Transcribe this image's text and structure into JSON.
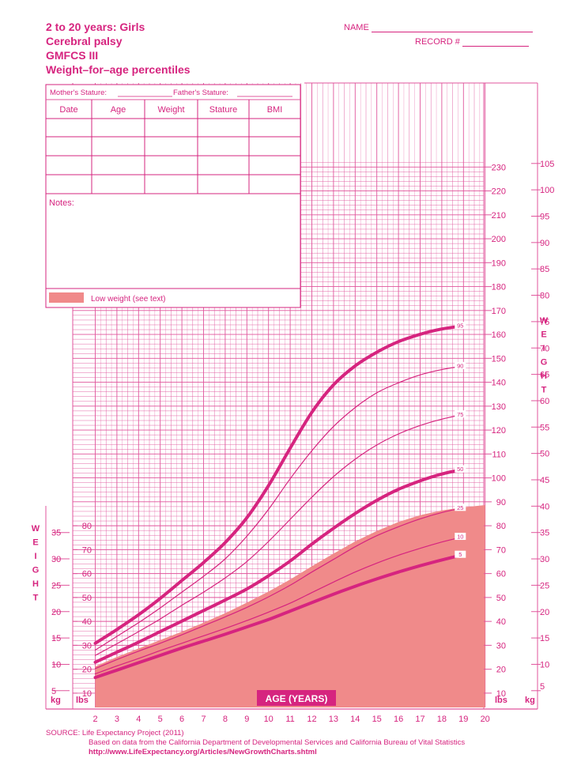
{
  "header": {
    "title_lines": [
      "2 to 20 years: Girls",
      "Cerebral palsy",
      "GMFCS III",
      "Weight–for–age percentiles"
    ],
    "name_label": "NAME",
    "record_label": "RECORD #"
  },
  "record_table": {
    "mother_label": "Mother's Stature:",
    "father_label": "Father's Stature:",
    "columns": [
      "Date",
      "Age",
      "Weight",
      "Stature",
      "BMI"
    ],
    "notes_label": "Notes:",
    "legend_label": "Low weight (see text)"
  },
  "side_labels": {
    "left_word": "WEIGHT",
    "right_word": "WEIGHT",
    "kg": "kg",
    "lbs": "lbs"
  },
  "source": {
    "line1": "SOURCE:  Life Expectancy Project (2011)",
    "line2": "Based on data from the California Department of Developmental Services and California Bureau of Vital Statistics",
    "line3": "http://www.LifeExpectancy.org/Articles/NewGrowthCharts.shtml"
  },
  "colors": {
    "accent": "#d6247f",
    "grid": "#e0559c",
    "shade": "#f08a8a"
  },
  "chart_data": {
    "type": "line",
    "title": "Weight–for–age percentiles",
    "xlabel": "AGE (YEARS)",
    "ylabel": "WEIGHT",
    "x": [
      2,
      3,
      4,
      5,
      6,
      7,
      8,
      9,
      10,
      11,
      12,
      13,
      14,
      15,
      16,
      17,
      18,
      19,
      20
    ],
    "xlim": [
      2,
      20
    ],
    "ylim_kg": [
      3,
      107
    ],
    "grid": true,
    "series": [
      {
        "name": "5",
        "values": [
          7.5,
          8.9,
          10.3,
          11.7,
          13.1,
          14.4,
          15.7,
          17.1,
          18.5,
          20.1,
          21.7,
          23.3,
          24.8,
          26.2,
          27.5,
          28.7,
          29.8,
          30.8,
          31.6
        ]
      },
      {
        "name": "10",
        "values": [
          8.2,
          9.7,
          11.1,
          12.6,
          14.0,
          15.4,
          16.8,
          18.3,
          19.9,
          21.6,
          23.6,
          25.6,
          27.5,
          29.2,
          30.7,
          32.0,
          33.2,
          34.2,
          34.9
        ]
      },
      {
        "name": "25",
        "values": [
          9.2,
          10.9,
          12.5,
          14.0,
          15.6,
          17.3,
          19.0,
          20.8,
          22.8,
          25.0,
          27.5,
          29.9,
          32.3,
          34.4,
          36.1,
          37.6,
          38.8,
          39.7,
          40.3
        ]
      },
      {
        "name": "50",
        "values": [
          10.4,
          12.3,
          14.2,
          16.2,
          18.2,
          20.2,
          22.2,
          24.3,
          26.8,
          29.6,
          32.8,
          35.8,
          38.6,
          41.1,
          43.2,
          44.8,
          46.1,
          47.0,
          47.6
        ]
      },
      {
        "name": "75",
        "values": [
          11.7,
          13.9,
          16.2,
          18.6,
          21.2,
          23.7,
          26.4,
          29.5,
          33.3,
          37.5,
          41.7,
          45.6,
          48.9,
          51.6,
          53.7,
          55.3,
          56.5,
          57.4,
          58.0
        ]
      },
      {
        "name": "90",
        "values": [
          12.7,
          15.3,
          17.9,
          20.7,
          23.7,
          26.7,
          30.0,
          34.3,
          39.4,
          45.2,
          50.5,
          55.1,
          58.7,
          61.5,
          63.4,
          64.9,
          65.9,
          66.6,
          67.0
        ]
      },
      {
        "name": "95",
        "values": [
          14.0,
          16.6,
          19.4,
          22.5,
          25.9,
          29.3,
          33.1,
          37.8,
          43.9,
          51.0,
          57.8,
          63.0,
          66.6,
          69.2,
          71.2,
          72.6,
          73.6,
          74.2,
          74.5
        ]
      }
    ],
    "low_weight_boundary_kg": [
      9.6,
      11.4,
      13.0,
      14.6,
      16.2,
      17.9,
      19.7,
      21.7,
      23.8,
      26.1,
      28.6,
      31.0,
      33.3,
      35.3,
      37.0,
      38.3,
      39.2,
      39.8,
      40.2
    ],
    "y_ticks_kg": [
      5,
      10,
      15,
      20,
      25,
      30,
      35,
      40,
      45,
      50,
      55,
      60,
      65,
      70,
      75,
      80,
      85,
      90,
      95,
      100,
      105
    ],
    "y_ticks_lbs": [
      10,
      20,
      30,
      40,
      50,
      60,
      70,
      80,
      90,
      100,
      110,
      120,
      130,
      140,
      150,
      160,
      170,
      180,
      190,
      200,
      210,
      220,
      230
    ],
    "left_axis_kg_ticks": [
      5,
      10,
      15,
      20,
      25,
      30,
      35
    ],
    "left_axis_lbs_ticks": [
      10,
      20,
      30,
      40,
      50,
      60,
      70,
      80
    ]
  }
}
